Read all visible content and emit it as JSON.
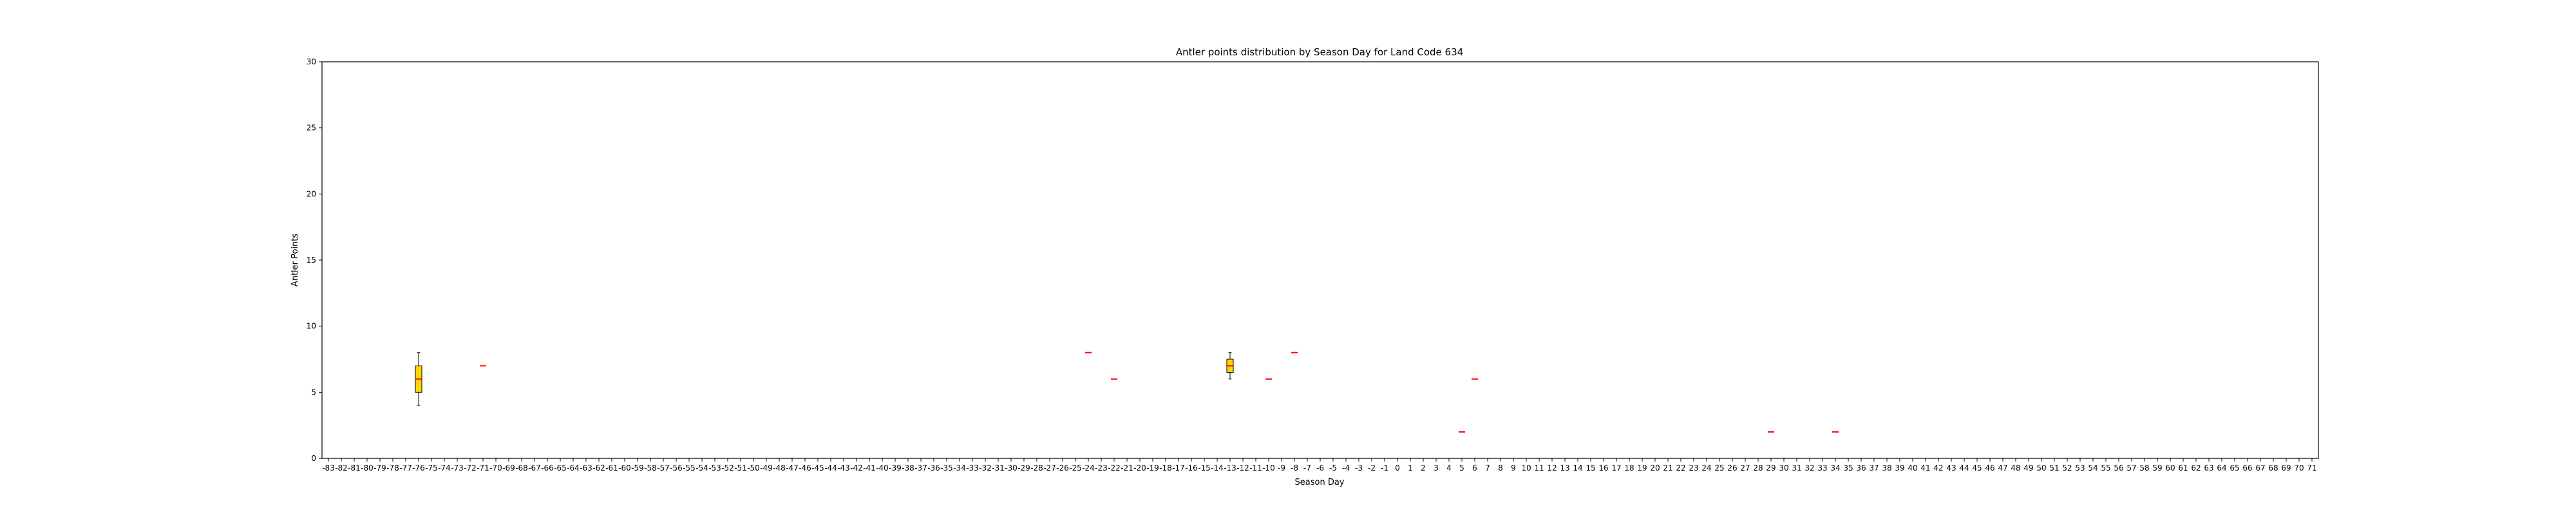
{
  "chart_data": {
    "type": "box",
    "title": "Antler points distribution by Season Day for Land Code 634",
    "xlabel": "Season Day",
    "ylabel": "Antler Points",
    "ylim": [
      0,
      30
    ],
    "yticks": [
      0,
      5,
      10,
      15,
      20,
      25,
      30
    ],
    "x_categories": [
      -83,
      -82,
      -81,
      -80,
      -79,
      -78,
      -77,
      -76,
      -75,
      -74,
      -73,
      -72,
      -71,
      -70,
      -69,
      -68,
      -67,
      -66,
      -65,
      -64,
      -63,
      -62,
      -61,
      -60,
      -59,
      -58,
      -57,
      -56,
      -55,
      -54,
      -53,
      -52,
      -51,
      -50,
      -49,
      -48,
      -47,
      -46,
      -45,
      -44,
      -43,
      -42,
      -41,
      -40,
      -39,
      -38,
      -37,
      -36,
      -35,
      -34,
      -33,
      -32,
      -31,
      -30,
      -29,
      -28,
      -27,
      -26,
      -25,
      -24,
      -23,
      -22,
      -21,
      -20,
      -19,
      -18,
      -17,
      -16,
      -15,
      -14,
      -13,
      -12,
      -11,
      -10,
      -9,
      -8,
      -7,
      -6,
      -5,
      -4,
      -3,
      -2,
      -1,
      0,
      1,
      2,
      3,
      4,
      5,
      6,
      7,
      8,
      9,
      10,
      11,
      12,
      13,
      14,
      15,
      16,
      17,
      18,
      19,
      20,
      21,
      22,
      23,
      24,
      25,
      26,
      27,
      28,
      29,
      30,
      31,
      32,
      33,
      34,
      35,
      36,
      37,
      38,
      39,
      40,
      41,
      42,
      43,
      44,
      45,
      46,
      47,
      48,
      49,
      50,
      51,
      52,
      53,
      54,
      55,
      56,
      57,
      58,
      59,
      60,
      61,
      62,
      63,
      64,
      65,
      66,
      67,
      68,
      69,
      70,
      71
    ],
    "boxes": [
      {
        "day": -76,
        "whisker_low": 4,
        "q1": 5,
        "median": 6,
        "q3": 7,
        "whisker_high": 8
      },
      {
        "day": -71,
        "whisker_low": 7,
        "q1": 7,
        "median": 7,
        "q3": 7,
        "whisker_high": 7
      },
      {
        "day": -24,
        "whisker_low": 8,
        "q1": 8,
        "median": 8,
        "q3": 8,
        "whisker_high": 8
      },
      {
        "day": -22,
        "whisker_low": 6,
        "q1": 6,
        "median": 6,
        "q3": 6,
        "whisker_high": 6
      },
      {
        "day": -13,
        "whisker_low": 6,
        "q1": 6.5,
        "median": 7,
        "q3": 7.5,
        "whisker_high": 8
      },
      {
        "day": -10,
        "whisker_low": 6,
        "q1": 6,
        "median": 6,
        "q3": 6,
        "whisker_high": 6
      },
      {
        "day": -8,
        "whisker_low": 8,
        "q1": 8,
        "median": 8,
        "q3": 8,
        "whisker_high": 8
      },
      {
        "day": 5,
        "whisker_low": 2,
        "q1": 2,
        "median": 2,
        "q3": 2,
        "whisker_high": 2
      },
      {
        "day": 6,
        "whisker_low": 6,
        "q1": 6,
        "median": 6,
        "q3": 6,
        "whisker_high": 6
      },
      {
        "day": 29,
        "whisker_low": 2,
        "q1": 2,
        "median": 2,
        "q3": 2,
        "whisker_high": 2
      },
      {
        "day": 34,
        "whisker_low": 2,
        "q1": 2,
        "median": 2,
        "q3": 2,
        "whisker_high": 2
      }
    ],
    "box_color": "#ffd700",
    "median_color": "#ff0000",
    "grid": false,
    "legend": false
  }
}
